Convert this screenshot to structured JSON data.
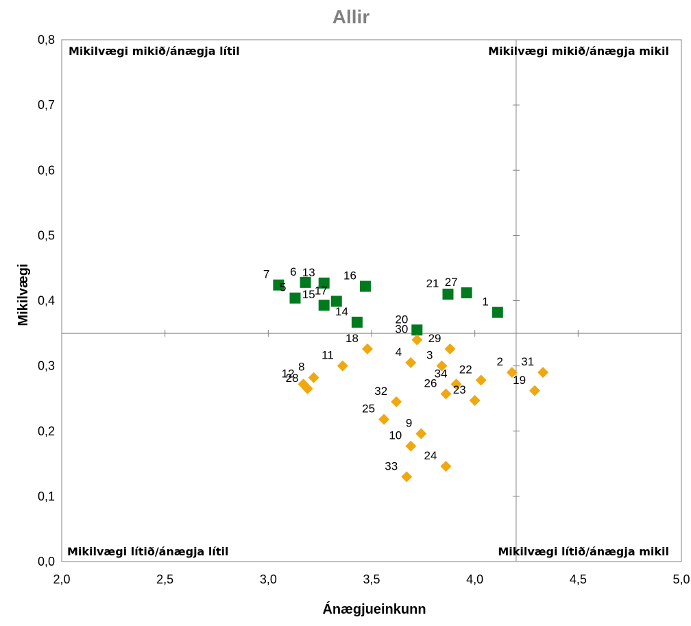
{
  "chart_data": {
    "type": "scatter",
    "title": "Allir",
    "title_color": "#808080",
    "xlabel": "Ánægjueinkunn",
    "ylabel": "Mikilvægi",
    "xlim": [
      2.0,
      5.0
    ],
    "ylim": [
      0.0,
      0.8
    ],
    "x_ticks": [
      "2,0",
      "2,5",
      "3,0",
      "3,5",
      "4,0",
      "4,5",
      "5,0"
    ],
    "y_ticks": [
      "0,0",
      "0,1",
      "0,2",
      "0,3",
      "0,4",
      "0,5",
      "0,6",
      "0,7",
      "0,8"
    ],
    "grid": false,
    "reference_lines": {
      "x": 4.2,
      "y": 0.35
    },
    "quadrant_labels": {
      "top_left": "Mikilvægi mikið/ánægja lítil",
      "top_right": "Mikilvægi mikið/ánægja mikil",
      "bottom_left": "Mikilvægi lítið/ánægja lítil",
      "bottom_right": "Mikilvægi lítið/ánægja mikil"
    },
    "series": [
      {
        "marker": "square",
        "color": "#007a1e",
        "points": [
          {
            "label": "1",
            "x": 4.11,
            "y": 0.382
          },
          {
            "label": "5",
            "x": 3.13,
            "y": 0.404
          },
          {
            "label": "6",
            "x": 3.18,
            "y": 0.428
          },
          {
            "label": "7",
            "x": 3.05,
            "y": 0.424
          },
          {
            "label": "13",
            "x": 3.27,
            "y": 0.427
          },
          {
            "label": "14",
            "x": 3.43,
            "y": 0.367
          },
          {
            "label": "15",
            "x": 3.27,
            "y": 0.393
          },
          {
            "label": "16",
            "x": 3.47,
            "y": 0.422
          },
          {
            "label": "17",
            "x": 3.33,
            "y": 0.399
          },
          {
            "label": "20",
            "x": 3.72,
            "y": 0.355
          },
          {
            "label": "21",
            "x": 3.87,
            "y": 0.41
          },
          {
            "label": "27",
            "x": 3.96,
            "y": 0.412
          }
        ]
      },
      {
        "marker": "diamond",
        "color": "#f0a810",
        "points": [
          {
            "label": "2",
            "x": 4.18,
            "y": 0.29
          },
          {
            "label": "3",
            "x": 3.84,
            "y": 0.3
          },
          {
            "label": "4",
            "x": 3.69,
            "y": 0.305
          },
          {
            "label": "8",
            "x": 3.22,
            "y": 0.282
          },
          {
            "label": "9",
            "x": 3.74,
            "y": 0.196
          },
          {
            "label": "10",
            "x": 3.69,
            "y": 0.177
          },
          {
            "label": "11",
            "x": 3.36,
            "y": 0.3
          },
          {
            "label": "12",
            "x": 3.17,
            "y": 0.272
          },
          {
            "label": "18",
            "x": 3.48,
            "y": 0.326
          },
          {
            "label": "19",
            "x": 4.29,
            "y": 0.262
          },
          {
            "label": "22",
            "x": 4.03,
            "y": 0.278
          },
          {
            "label": "23",
            "x": 4.0,
            "y": 0.247
          },
          {
            "label": "24",
            "x": 3.86,
            "y": 0.146
          },
          {
            "label": "25",
            "x": 3.56,
            "y": 0.218
          },
          {
            "label": "26",
            "x": 3.86,
            "y": 0.257
          },
          {
            "label": "28",
            "x": 3.19,
            "y": 0.265
          },
          {
            "label": "29",
            "x": 3.88,
            "y": 0.326
          },
          {
            "label": "30",
            "x": 3.72,
            "y": 0.34
          },
          {
            "label": "31",
            "x": 4.33,
            "y": 0.29
          },
          {
            "label": "32",
            "x": 3.62,
            "y": 0.245
          },
          {
            "label": "33",
            "x": 3.67,
            "y": 0.13
          },
          {
            "label": "34",
            "x": 3.91,
            "y": 0.272
          }
        ]
      }
    ]
  }
}
